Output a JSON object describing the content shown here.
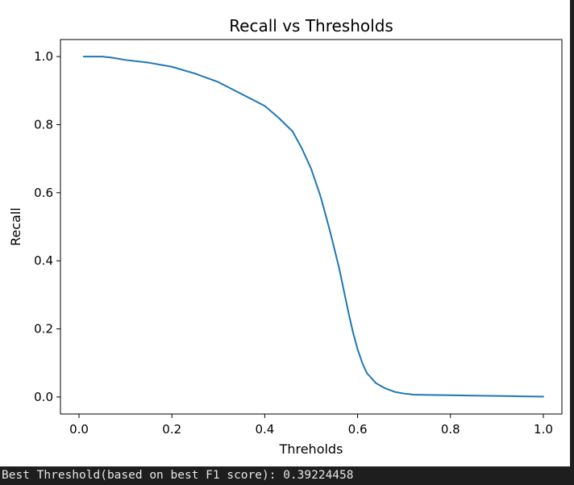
{
  "output": {
    "text": "Best Threshold(based on best F1 score): 0.39224458"
  },
  "colors": {
    "line": "#1f77b4",
    "output_bg": "#1e1e1e",
    "output_text": "#e6e6e6"
  },
  "chart_data": {
    "type": "line",
    "title": "Recall vs Thresholds",
    "xlabel": "Threholds",
    "ylabel": "Recall",
    "xlim": [
      -0.04,
      1.04
    ],
    "ylim": [
      -0.05,
      1.05
    ],
    "xticks": [
      0.0,
      0.2,
      0.4,
      0.6,
      0.8,
      1.0
    ],
    "xtick_labels": [
      "0.0",
      "0.2",
      "0.4",
      "0.6",
      "0.8",
      "1.0"
    ],
    "yticks": [
      0.0,
      0.2,
      0.4,
      0.6,
      0.8,
      1.0
    ],
    "ytick_labels": [
      "0.0",
      "0.2",
      "0.4",
      "0.6",
      "0.8",
      "1.0"
    ],
    "grid": false,
    "series": [
      {
        "x": [
          0.01,
          0.03,
          0.05,
          0.07,
          0.1,
          0.15,
          0.2,
          0.25,
          0.3,
          0.35,
          0.4,
          0.43,
          0.46,
          0.48,
          0.5,
          0.52,
          0.54,
          0.56,
          0.58,
          0.59,
          0.6,
          0.61,
          0.62,
          0.64,
          0.66,
          0.68,
          0.7,
          0.72,
          0.75,
          0.8,
          0.85,
          0.9,
          0.95,
          1.0
        ],
        "y": [
          1.0,
          1.0,
          1.0,
          0.997,
          0.99,
          0.982,
          0.97,
          0.95,
          0.925,
          0.89,
          0.855,
          0.82,
          0.78,
          0.73,
          0.67,
          0.59,
          0.49,
          0.38,
          0.25,
          0.19,
          0.14,
          0.1,
          0.07,
          0.04,
          0.025,
          0.015,
          0.01,
          0.007,
          0.006,
          0.005,
          0.004,
          0.003,
          0.002,
          0.001
        ]
      }
    ]
  }
}
